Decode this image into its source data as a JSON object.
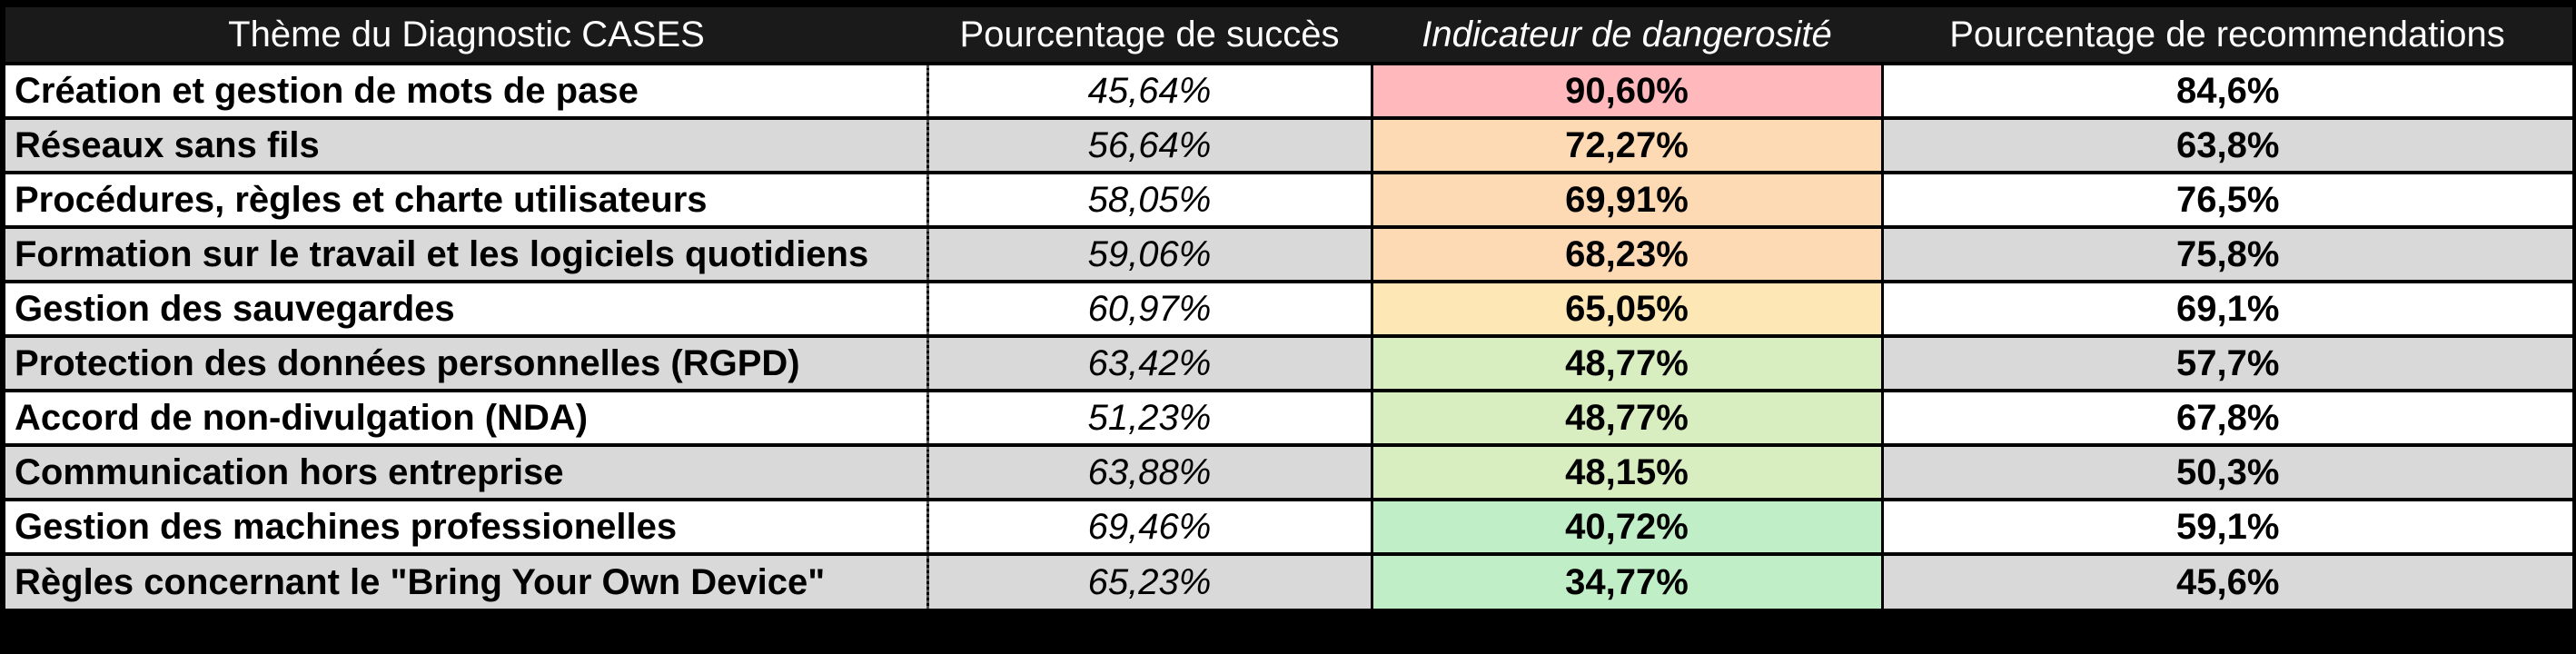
{
  "chart_data": {
    "type": "table",
    "columns": [
      "Thème du Diagnostic CASES",
      "Pourcentage de succès",
      "Indicateur de dangerosité",
      "Pourcentage de recommendations"
    ],
    "rows": [
      {
        "theme": "Création et gestion de mots de pase",
        "success": "45,64%",
        "danger": "90,60%",
        "danger_value": 90.6,
        "reco": "84,6%"
      },
      {
        "theme": "Réseaux sans fils",
        "success": "56,64%",
        "danger": "72,27%",
        "danger_value": 72.27,
        "reco": "63,8%"
      },
      {
        "theme": "Procédures, règles et charte utilisateurs",
        "success": "58,05%",
        "danger": "69,91%",
        "danger_value": 69.91,
        "reco": "76,5%"
      },
      {
        "theme": "Formation sur le travail et les logiciels quotidiens",
        "success": "59,06%",
        "danger": "68,23%",
        "danger_value": 68.23,
        "reco": "75,8%"
      },
      {
        "theme": "Gestion des sauvegardes",
        "success": "60,97%",
        "danger": "65,05%",
        "danger_value": 65.05,
        "reco": "69,1%"
      },
      {
        "theme": "Protection des données personnelles (RGPD)",
        "success": "63,42%",
        "danger": "48,77%",
        "danger_value": 48.77,
        "reco": "57,7%"
      },
      {
        "theme": "Accord de non-divulgation (NDA)",
        "success": "51,23%",
        "danger": "48,77%",
        "danger_value": 48.77,
        "reco": "67,8%"
      },
      {
        "theme": "Communication hors entreprise",
        "success": "63,88%",
        "danger": "48,15%",
        "danger_value": 48.15,
        "reco": "50,3%"
      },
      {
        "theme": "Gestion des machines professionelles",
        "success": "69,46%",
        "danger": "40,72%",
        "danger_value": 40.72,
        "reco": "59,1%"
      },
      {
        "theme": "Règles concernant le  \"Bring Your Own Device\"",
        "success": "65,23%",
        "danger": "34,77%",
        "danger_value": 34.77,
        "reco": "45,6%"
      }
    ]
  },
  "colors": {
    "header_bg": "#1a1a1a",
    "header_text": "#ffffff",
    "row_white": "#ffffff",
    "row_gray": "#d9d9d9",
    "danger_scale": [
      "#ffb8bc",
      "#fdd9b4",
      "#fde7b5",
      "#d8edc0",
      "#c0eec6"
    ]
  }
}
